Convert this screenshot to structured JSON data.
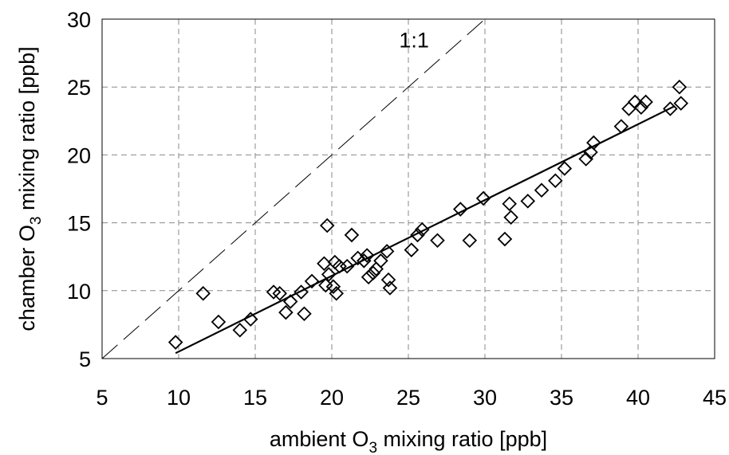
{
  "chart_data": {
    "type": "scatter",
    "xlabel": {
      "prefix": "ambient O",
      "subscript": "3",
      "suffix": " mixing ratio [ppb]"
    },
    "ylabel": {
      "prefix": "chamber O",
      "subscript": "3",
      "suffix": " mixing ratio [ppb]"
    },
    "xlim": [
      5,
      45
    ],
    "ylim": [
      5,
      30
    ],
    "xticks": [
      5,
      10,
      15,
      20,
      25,
      30,
      35,
      40,
      45
    ],
    "yticks": [
      5,
      10,
      15,
      20,
      25,
      30
    ],
    "grid": true,
    "marker": "diamond",
    "series": [
      {
        "points": [
          [
            9.8,
            6.2
          ],
          [
            11.6,
            9.8
          ],
          [
            12.6,
            7.7
          ],
          [
            14.0,
            7.1
          ],
          [
            14.7,
            7.9
          ],
          [
            16.2,
            9.9
          ],
          [
            16.6,
            9.8
          ],
          [
            17.0,
            8.4
          ],
          [
            17.3,
            9.2
          ],
          [
            18.0,
            9.9
          ],
          [
            18.2,
            8.3
          ],
          [
            18.7,
            10.7
          ],
          [
            19.5,
            12.0
          ],
          [
            19.6,
            10.4
          ],
          [
            19.7,
            14.8
          ],
          [
            19.8,
            11.2
          ],
          [
            20.1,
            10.3
          ],
          [
            20.2,
            12.1
          ],
          [
            20.3,
            9.8
          ],
          [
            20.5,
            11.8
          ],
          [
            21.0,
            11.8
          ],
          [
            21.3,
            14.1
          ],
          [
            21.7,
            12.4
          ],
          [
            22.1,
            12.2
          ],
          [
            22.3,
            12.6
          ],
          [
            22.4,
            11.0
          ],
          [
            22.7,
            11.3
          ],
          [
            22.9,
            11.6
          ],
          [
            23.2,
            12.2
          ],
          [
            23.6,
            12.9
          ],
          [
            23.7,
            10.8
          ],
          [
            23.8,
            10.2
          ],
          [
            25.2,
            13.0
          ],
          [
            25.6,
            14.1
          ],
          [
            25.9,
            14.5
          ],
          [
            26.9,
            13.7
          ],
          [
            28.4,
            16.0
          ],
          [
            29.0,
            13.7
          ],
          [
            29.9,
            16.8
          ],
          [
            31.3,
            13.8
          ],
          [
            31.6,
            16.4
          ],
          [
            31.7,
            15.4
          ],
          [
            32.8,
            16.6
          ],
          [
            33.7,
            17.4
          ],
          [
            34.6,
            18.1
          ],
          [
            35.2,
            19.0
          ],
          [
            36.6,
            19.7
          ],
          [
            36.9,
            20.2
          ],
          [
            37.1,
            20.9
          ],
          [
            38.9,
            22.1
          ],
          [
            39.4,
            23.4
          ],
          [
            39.8,
            23.9
          ],
          [
            40.2,
            23.5
          ],
          [
            40.5,
            23.9
          ],
          [
            42.1,
            23.4
          ],
          [
            42.7,
            25.0
          ],
          [
            42.8,
            23.8
          ]
        ]
      }
    ],
    "regression_line": {
      "x": [
        9.8,
        42.4
      ],
      "y": [
        5.4,
        23.6
      ]
    },
    "reference_line": {
      "label": "1:1",
      "x": [
        5,
        30
      ],
      "y": [
        5,
        30
      ]
    }
  }
}
